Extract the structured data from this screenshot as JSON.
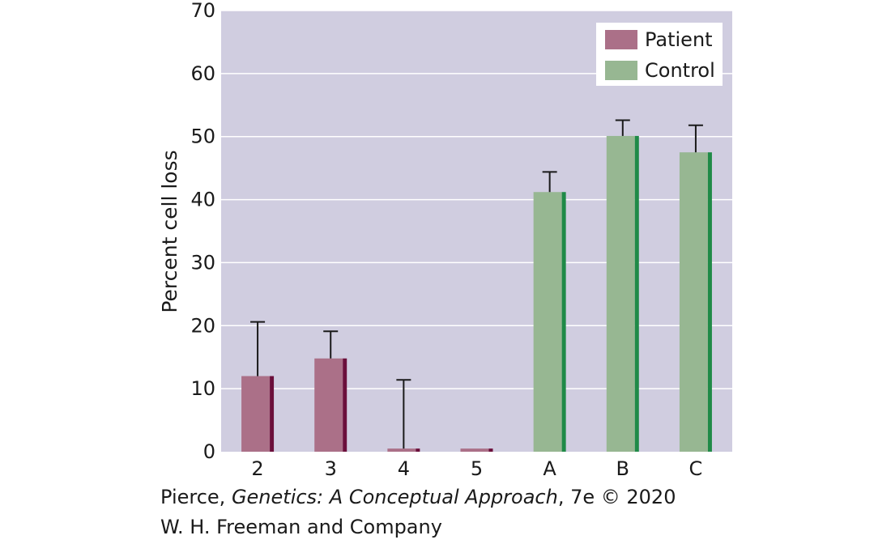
{
  "chart_data": {
    "type": "bar",
    "categories": [
      "2",
      "3",
      "4",
      "5",
      "A",
      "B",
      "C"
    ],
    "values": [
      12,
      14.8,
      0.5,
      0.5,
      41.2,
      50.1,
      47.5
    ],
    "error_upper": [
      20.6,
      19.1,
      11.4,
      null,
      44.4,
      52.6,
      51.8
    ],
    "groups": [
      "Patient",
      "Patient",
      "Patient",
      "Patient",
      "Control",
      "Control",
      "Control"
    ],
    "series": [
      {
        "name": "Patient",
        "color": "#ab7088",
        "edge_color": "#6b0f3b"
      },
      {
        "name": "Control",
        "color": "#97b792",
        "edge_color": "#1f8a47"
      }
    ],
    "ylabel": "Percent cell loss",
    "xlabel": "",
    "ylim": [
      0,
      70
    ],
    "yticks": [
      0,
      10,
      20,
      30,
      40,
      50,
      60,
      70
    ],
    "grid": true,
    "legend_position": "top-right",
    "plot_background": "#d0cde0",
    "gridline_color": "#ffffff"
  },
  "credit": {
    "line1_prefix": "Pierce, ",
    "line1_title": "Genetics: A Conceptual Approach",
    "line1_suffix": ", 7e © 2020",
    "line2": "W. H. Freeman and Company"
  }
}
